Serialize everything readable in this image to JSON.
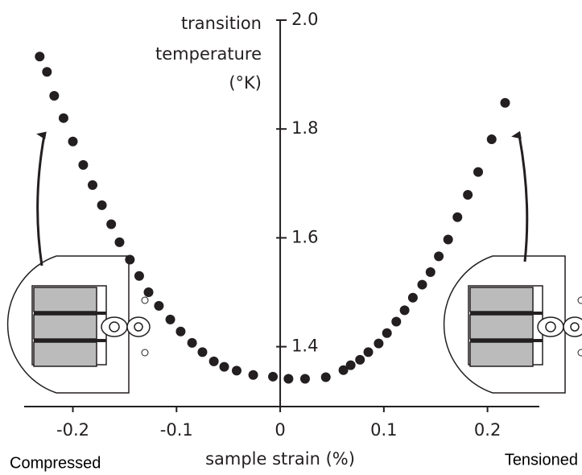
{
  "chart_data": {
    "type": "scatter",
    "ylabel": [
      "transition",
      "temperature",
      "(°K)"
    ],
    "xlabel": "sample strain (%)",
    "annotations": [
      "Compressed",
      "Tensioned"
    ],
    "color": "#231f20",
    "x": [
      -0.232,
      -0.225,
      -0.218,
      -0.209,
      -0.2,
      -0.19,
      -0.181,
      -0.172,
      -0.163,
      -0.155,
      -0.145,
      -0.136,
      -0.127,
      -0.117,
      -0.106,
      -0.096,
      -0.085,
      -0.075,
      -0.064,
      -0.054,
      -0.042,
      -0.026,
      -0.007,
      0.008,
      0.024,
      0.044,
      0.061,
      0.068,
      0.077,
      0.085,
      0.095,
      0.103,
      0.112,
      0.12,
      0.128,
      0.137,
      0.145,
      0.153,
      0.162,
      0.171,
      0.181,
      0.191,
      0.204,
      0.217
    ],
    "values": [
      1.933,
      1.905,
      1.861,
      1.82,
      1.777,
      1.734,
      1.697,
      1.66,
      1.625,
      1.592,
      1.56,
      1.53,
      1.5,
      1.475,
      1.45,
      1.428,
      1.407,
      1.39,
      1.373,
      1.363,
      1.356,
      1.348,
      1.345,
      1.341,
      1.341,
      1.344,
      1.357,
      1.366,
      1.376,
      1.39,
      1.406,
      1.425,
      1.446,
      1.467,
      1.49,
      1.514,
      1.537,
      1.566,
      1.597,
      1.638,
      1.679,
      1.721,
      1.781,
      1.848
    ],
    "xlim": [
      -0.247,
      0.25
    ],
    "ylim": [
      1.29,
      2.0
    ],
    "xticks": [
      -0.2,
      -0.1,
      0,
      0.1,
      0.2
    ],
    "yticks": [
      1.4,
      1.6,
      1.8,
      {
        "value": 2,
        "label": "2.0"
      }
    ]
  }
}
